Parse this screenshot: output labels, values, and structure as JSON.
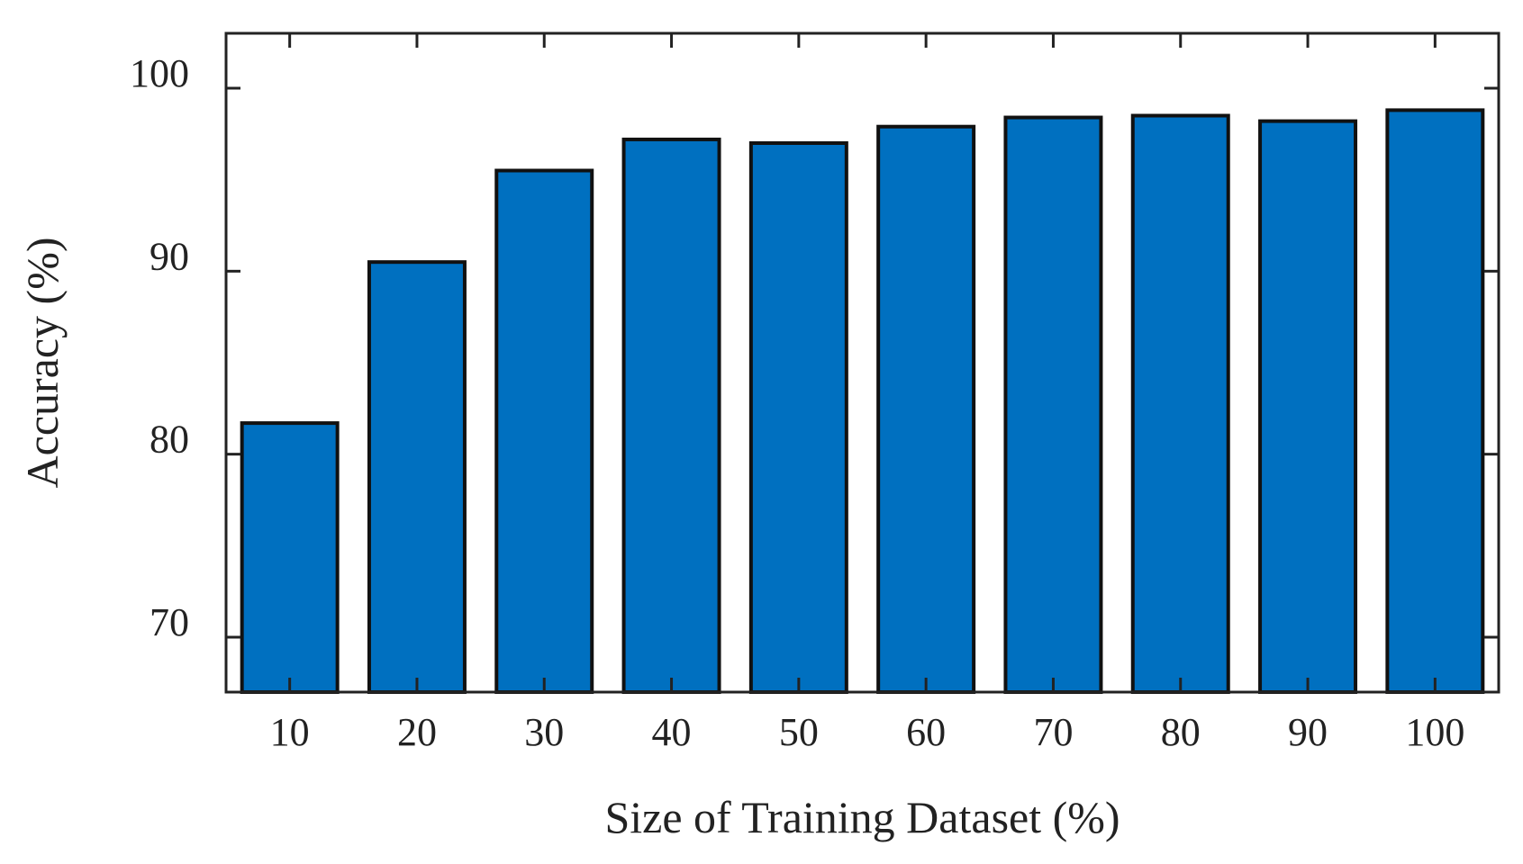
{
  "chart_data": {
    "type": "bar",
    "title": "",
    "xlabel": "Size of Training Dataset (%)",
    "ylabel": "Accuracy (%)",
    "categories": [
      "10",
      "20",
      "30",
      "40",
      "50",
      "60",
      "70",
      "80",
      "90",
      "100"
    ],
    "values": [
      81.7,
      90.5,
      95.5,
      97.2,
      97.0,
      97.9,
      98.4,
      98.5,
      98.2,
      98.8
    ],
    "ylim": [
      67,
      103
    ],
    "yticks": [
      70,
      80,
      90,
      100
    ],
    "ytick_labels": [
      "70",
      "80",
      "90",
      "100"
    ],
    "grid": false,
    "legend": "none",
    "bar_color": "#0070c0",
    "bar_edge_color": "#111111"
  }
}
